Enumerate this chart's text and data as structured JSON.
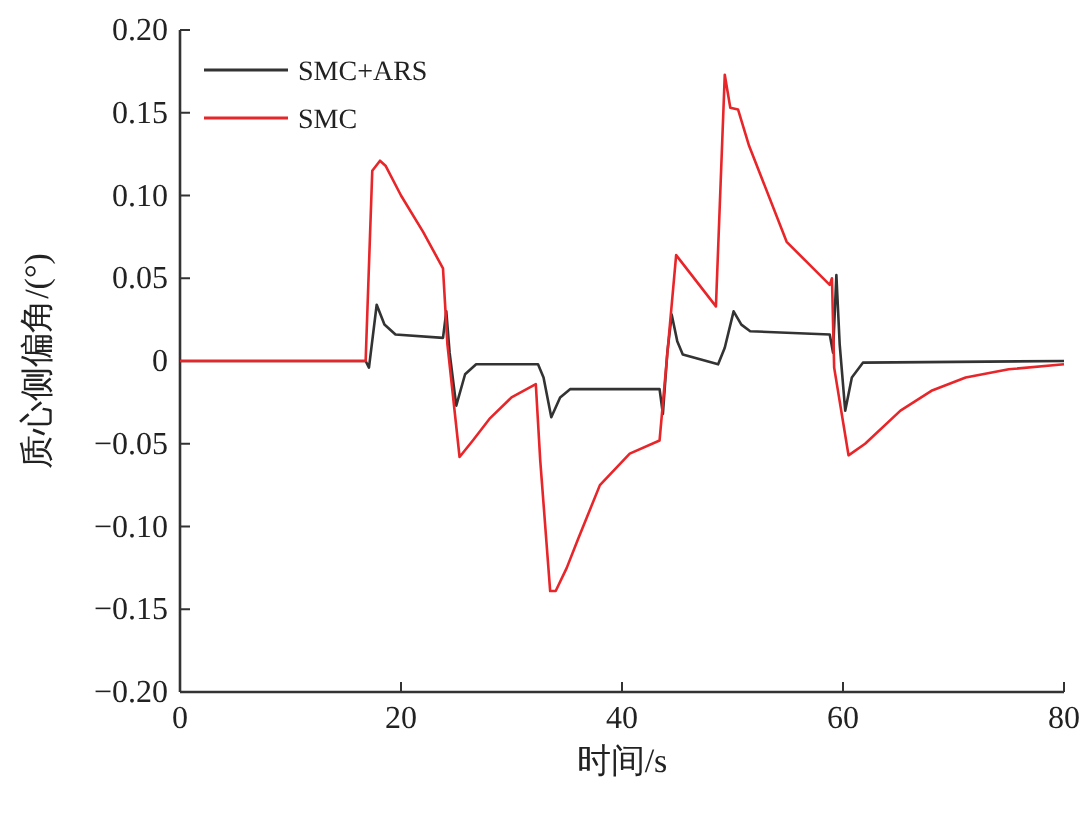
{
  "chart_data": {
    "type": "line",
    "xlabel": "时间/s",
    "ylabel": "质心侧偏角/(°)",
    "xlim": [
      0,
      80
    ],
    "xticks": [
      0,
      20,
      40,
      60,
      80
    ],
    "ylim": [
      -0.2,
      0.2
    ],
    "yticks": [
      {
        "value": -0.2,
        "label": "−0.20"
      },
      {
        "value": -0.15,
        "label": "−0.15"
      },
      {
        "value": -0.1,
        "label": "−0.10"
      },
      {
        "value": -0.05,
        "label": "−0.05"
      },
      0,
      {
        "value": 0.05,
        "label": "0.05"
      },
      {
        "value": 0.1,
        "label": "0.10"
      },
      {
        "value": 0.15,
        "label": "0.15"
      },
      {
        "value": 0.2,
        "label": "0.20"
      }
    ],
    "legend": "top left",
    "grid": false,
    "marker": "none",
    "line_style": "solid",
    "series": [
      {
        "name": "SMC+ARS",
        "color": "#333333",
        "x": [
          0,
          16.8,
          17.1,
          17.8,
          18.5,
          19.5,
          23.8,
          24.1,
          24.4,
          25,
          25.8,
          26.8,
          32.4,
          32.9,
          33.6,
          34.4,
          35.3,
          43.4,
          43.7,
          44.1,
          44.5,
          45,
          45.5,
          48.7,
          49.3,
          50.1,
          50.8,
          51.6,
          58.8,
          59.1,
          59.4,
          59.7,
          60.2,
          60.8,
          61.8,
          80
        ],
        "values": [
          0,
          0,
          -0.004,
          0.034,
          0.022,
          0.016,
          0.014,
          0.03,
          0.005,
          -0.027,
          -0.008,
          -0.002,
          -0.002,
          -0.01,
          -0.034,
          -0.022,
          -0.017,
          -0.017,
          -0.032,
          0.005,
          0.028,
          0.012,
          0.004,
          -0.002,
          0.008,
          0.03,
          0.022,
          0.018,
          0.016,
          0.005,
          0.052,
          0.01,
          -0.03,
          -0.01,
          -0.001,
          0
        ]
      },
      {
        "name": "SMC",
        "color": "#e8262a",
        "x": [
          0,
          16.8,
          17.4,
          18.1,
          18.6,
          20,
          22,
          23.8,
          24.2,
          25.3,
          26.5,
          28,
          30,
          32.2,
          32.6,
          33.5,
          34,
          35,
          36,
          38,
          40.7,
          43.4,
          44.9,
          48.5,
          49.3,
          49.8,
          50.5,
          51.5,
          52.5,
          54.9,
          58.8,
          59,
          59.2,
          60.5,
          62,
          65.2,
          68,
          71.1,
          75,
          80
        ],
        "values": [
          0,
          0,
          0.115,
          0.121,
          0.118,
          0.1,
          0.078,
          0.056,
          0.01,
          -0.058,
          -0.048,
          -0.035,
          -0.022,
          -0.014,
          -0.06,
          -0.139,
          -0.139,
          -0.125,
          -0.108,
          -0.075,
          -0.056,
          -0.048,
          0.064,
          0.033,
          0.173,
          0.153,
          0.152,
          0.13,
          0.113,
          0.072,
          0.046,
          0.05,
          -0.004,
          -0.057,
          -0.05,
          -0.03,
          -0.018,
          -0.01,
          -0.005,
          -0.002
        ]
      }
    ]
  }
}
